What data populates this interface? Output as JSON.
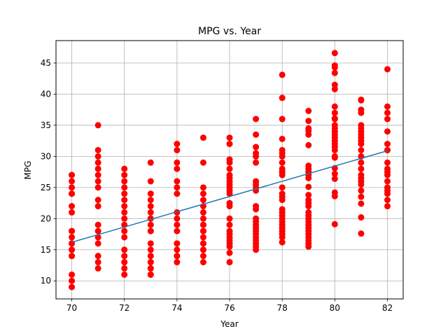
{
  "chart_data": {
    "type": "scatter",
    "title": "MPG vs. Year",
    "xlabel": "Year",
    "ylabel": "MPG",
    "xlim": [
      69.4,
      82.6
    ],
    "ylim": [
      7.1,
      48.6
    ],
    "xticks": [
      70,
      72,
      74,
      76,
      78,
      80,
      82
    ],
    "yticks": [
      10,
      15,
      20,
      25,
      30,
      35,
      40,
      45
    ],
    "grid": true,
    "colors": {
      "points": "#ff0000",
      "line": "#1f77b4"
    },
    "series": [
      {
        "kind": "points",
        "x": [
          70,
          70,
          70,
          70,
          70,
          70,
          70,
          70,
          70,
          70,
          70,
          70,
          70,
          70,
          70,
          70,
          70,
          70,
          70,
          70,
          71,
          71,
          71,
          71,
          71,
          71,
          71,
          71,
          71,
          71,
          71,
          71,
          71,
          71,
          71,
          71,
          71,
          72,
          72,
          72,
          72,
          72,
          72,
          72,
          72,
          72,
          72,
          72,
          72,
          72,
          72,
          72,
          72,
          72,
          72,
          73,
          73,
          73,
          73,
          73,
          73,
          73,
          73,
          73,
          73,
          73,
          73,
          73,
          73,
          73,
          73,
          73,
          73,
          73,
          73,
          74,
          74,
          74,
          74,
          74,
          74,
          74,
          74,
          74,
          74,
          74,
          74,
          74,
          74,
          74,
          74,
          74,
          75,
          75,
          75,
          75,
          75,
          75,
          75,
          75,
          75,
          75,
          75,
          75,
          75,
          75,
          75,
          75,
          75,
          75,
          75,
          76,
          76,
          76,
          76,
          76,
          76,
          76,
          76,
          76,
          76,
          76,
          76,
          76,
          76,
          76,
          76,
          76,
          76,
          76,
          76,
          76,
          76,
          76,
          76,
          77,
          77,
          77,
          77,
          77,
          77,
          77,
          77,
          77,
          77,
          77,
          77,
          77,
          77,
          77,
          77,
          77,
          77,
          77,
          77,
          77,
          77,
          77,
          78,
          78,
          78,
          78,
          78,
          78,
          78,
          78,
          78,
          78,
          78,
          78,
          78,
          78,
          78,
          78,
          78,
          78,
          78,
          78,
          78,
          78,
          78,
          78,
          78,
          78,
          79,
          79,
          79,
          79,
          79,
          79,
          79,
          79,
          79,
          79,
          79,
          79,
          79,
          79,
          79,
          79,
          79,
          79,
          79,
          79,
          79,
          79,
          79,
          79,
          79,
          79,
          79,
          79,
          80,
          80,
          80,
          80,
          80,
          80,
          80,
          80,
          80,
          80,
          80,
          80,
          80,
          80,
          80,
          80,
          80,
          80,
          80,
          80,
          80,
          80,
          80,
          80,
          80,
          80,
          80,
          81,
          81,
          81,
          81,
          81,
          81,
          81,
          81,
          81,
          81,
          81,
          81,
          81,
          81,
          81,
          81,
          81,
          81,
          81,
          81,
          81,
          81,
          81,
          81,
          82,
          82,
          82,
          82,
          82,
          82,
          82,
          82,
          82,
          82,
          82,
          82,
          82,
          82,
          82,
          82,
          82,
          82
        ],
        "y": [
          9,
          10,
          11,
          14,
          15,
          16,
          17,
          18,
          21,
          22,
          24,
          25,
          26,
          27,
          15,
          14,
          18,
          16,
          24,
          27,
          12,
          13,
          14,
          16,
          17,
          18,
          19,
          22,
          23,
          25,
          26,
          27,
          28,
          29,
          30,
          31,
          35,
          11,
          12,
          13,
          14,
          15,
          17,
          18,
          19,
          20,
          21,
          22,
          23,
          24,
          25,
          26,
          27,
          28,
          13,
          11,
          12,
          13,
          14,
          15,
          16,
          18,
          19,
          20,
          21,
          22,
          23,
          24,
          26,
          29,
          11,
          12,
          13,
          18,
          20,
          13,
          14,
          15,
          16,
          18,
          19,
          20,
          21,
          24,
          25,
          26,
          28,
          29,
          31,
          32,
          14,
          16,
          13,
          14,
          15,
          16,
          17,
          18,
          19,
          20,
          21,
          22,
          23,
          24,
          25,
          29,
          33,
          15,
          16,
          18,
          19,
          13,
          14.5,
          15.5,
          16,
          16.5,
          17,
          17.5,
          18,
          19,
          20,
          22,
          22.5,
          24,
          24.5,
          25,
          25.5,
          26,
          26.5,
          27,
          28,
          29,
          29.5,
          32,
          33,
          15,
          15.5,
          16,
          16.5,
          17,
          17.5,
          18,
          18.5,
          19,
          19.5,
          20,
          21.5,
          22,
          24.5,
          25.5,
          26,
          29,
          30,
          30.5,
          31.5,
          33.5,
          36,
          25,
          16.2,
          17,
          17.5,
          18,
          18.5,
          19,
          19.5,
          20,
          20.5,
          21,
          21.5,
          23,
          23.5,
          24,
          25,
          27,
          27.5,
          28,
          29,
          30,
          30.5,
          31,
          32.8,
          36,
          39.4,
          43.1,
          15.5,
          16,
          16.5,
          17,
          17.5,
          18,
          18.5,
          19,
          19.5,
          20,
          20.5,
          21,
          22,
          22.5,
          23,
          23.8,
          25.1,
          26.5,
          27,
          27.5,
          28.5,
          31.8,
          33.5,
          34.1,
          34.5,
          35.7,
          37.3,
          28,
          19.1,
          23.6,
          24.2,
          26.4,
          27.2,
          28.1,
          29.8,
          30,
          31,
          31.5,
          32,
          32.5,
          33,
          33.5,
          34,
          34.5,
          35,
          36,
          37,
          38,
          40.8,
          41.5,
          43.4,
          44.3,
          44.6,
          46.6,
          36.1,
          17.6,
          20.2,
          22.4,
          23.5,
          24.5,
          25.5,
          26,
          26.5,
          27,
          28,
          29,
          30,
          31,
          32,
          32.5,
          33,
          33.5,
          34,
          34.5,
          35,
          37,
          37.5,
          39,
          39.1,
          22,
          23,
          24,
          25,
          26,
          27,
          28,
          29,
          31,
          32,
          34,
          36,
          37,
          38,
          44,
          27.5,
          24.5,
          31
        ]
      },
      {
        "kind": "line",
        "x": [
          70,
          82
        ],
        "y": [
          16.2,
          30.9
        ]
      }
    ]
  }
}
